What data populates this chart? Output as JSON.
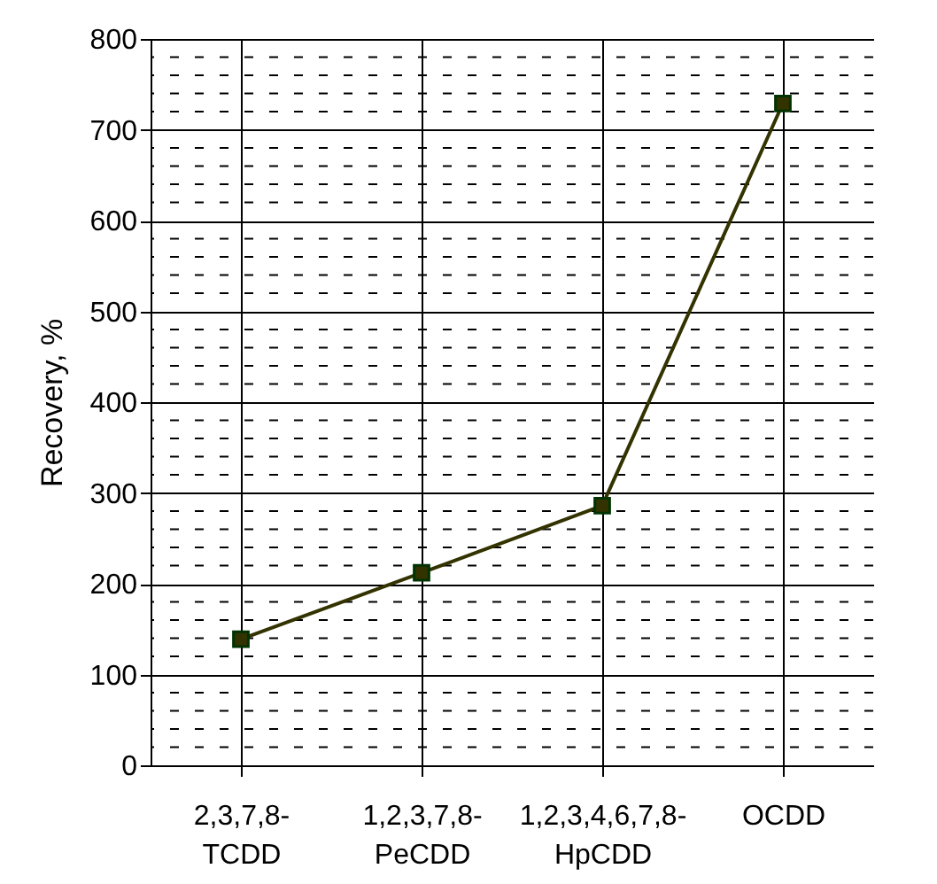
{
  "chart_data": {
    "type": "line",
    "ylabel": "Recovery, %",
    "categories": [
      "2,3,7,8-TCDD",
      "1,2,3,7,8-PeCDD",
      "1,2,3,4,6,7,8-HpCDD",
      "OCDD"
    ],
    "series": [
      {
        "color": "#333300",
        "values": [
          139,
          212,
          286,
          729
        ]
      }
    ],
    "ylim": [
      0,
      800
    ],
    "yticks": [
      0,
      {
        "value": 20,
        "label": null
      },
      {
        "value": 40,
        "label": null
      },
      {
        "value": 60,
        "label": null
      },
      {
        "value": 80,
        "label": null
      },
      100,
      {
        "value": 120,
        "label": null
      },
      {
        "value": 140,
        "label": null
      },
      {
        "value": 160,
        "label": null
      },
      {
        "value": 180,
        "label": null
      },
      200,
      {
        "value": 220,
        "label": null
      },
      {
        "value": 240,
        "label": null
      },
      {
        "value": 260,
        "label": null
      },
      {
        "value": 280,
        "label": null
      },
      300,
      {
        "value": 320,
        "label": null
      },
      {
        "value": 340,
        "label": null
      },
      {
        "value": 360,
        "label": null
      },
      {
        "value": 380,
        "label": null
      },
      400,
      {
        "value": 420,
        "label": null
      },
      {
        "value": 440,
        "label": null
      },
      {
        "value": 460,
        "label": null
      },
      {
        "value": 480,
        "label": null
      },
      500,
      {
        "value": 520,
        "label": null
      },
      {
        "value": 540,
        "label": null
      },
      {
        "value": 560,
        "label": null
      },
      {
        "value": 580,
        "label": null
      },
      600,
      {
        "value": 620,
        "label": null
      },
      {
        "value": 640,
        "label": null
      },
      {
        "value": 660,
        "label": null
      },
      {
        "value": 680,
        "label": null
      },
      700,
      {
        "value": 720,
        "label": null
      },
      {
        "value": 740,
        "label": null
      },
      {
        "value": 760,
        "label": null
      },
      {
        "value": 780,
        "label": null
      },
      800
    ],
    "grid": true,
    "marker": "square",
    "line_style": "solid"
  }
}
